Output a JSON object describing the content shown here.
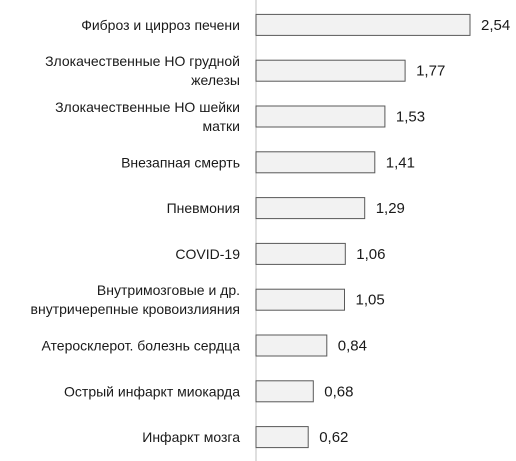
{
  "chart_data": {
    "type": "bar",
    "orientation": "horizontal",
    "categories": [
      [
        "Фиброз и цирроз печени"
      ],
      [
        "Злокачественные НО грудной",
        "железы"
      ],
      [
        "Злокачественные НО шейки",
        "матки"
      ],
      [
        "Внезапная  смерть"
      ],
      [
        "Пневмония"
      ],
      [
        "COVID-19"
      ],
      [
        "Внутримозговые и др.",
        "внутричерепные кровоизлияния"
      ],
      [
        "Атеросклерот. болезнь сердца"
      ],
      [
        "Острый инфаркт миокарда"
      ],
      [
        "Инфаркт мозга"
      ]
    ],
    "values": [
      2.54,
      1.77,
      1.53,
      1.41,
      1.29,
      1.06,
      1.05,
      0.84,
      0.68,
      0.62
    ],
    "value_labels": [
      "2,54",
      "1,77",
      "1,53",
      "1,41",
      "1,29",
      "1,06",
      "1,05",
      "0,84",
      "0,68",
      "0,62"
    ],
    "xlim": [
      0,
      2.54
    ],
    "grid": false,
    "legend": "none",
    "colors": {
      "bar_fill": "#f2f2f2",
      "bar_stroke": "#595959",
      "axis": "#bfbfbf"
    }
  }
}
